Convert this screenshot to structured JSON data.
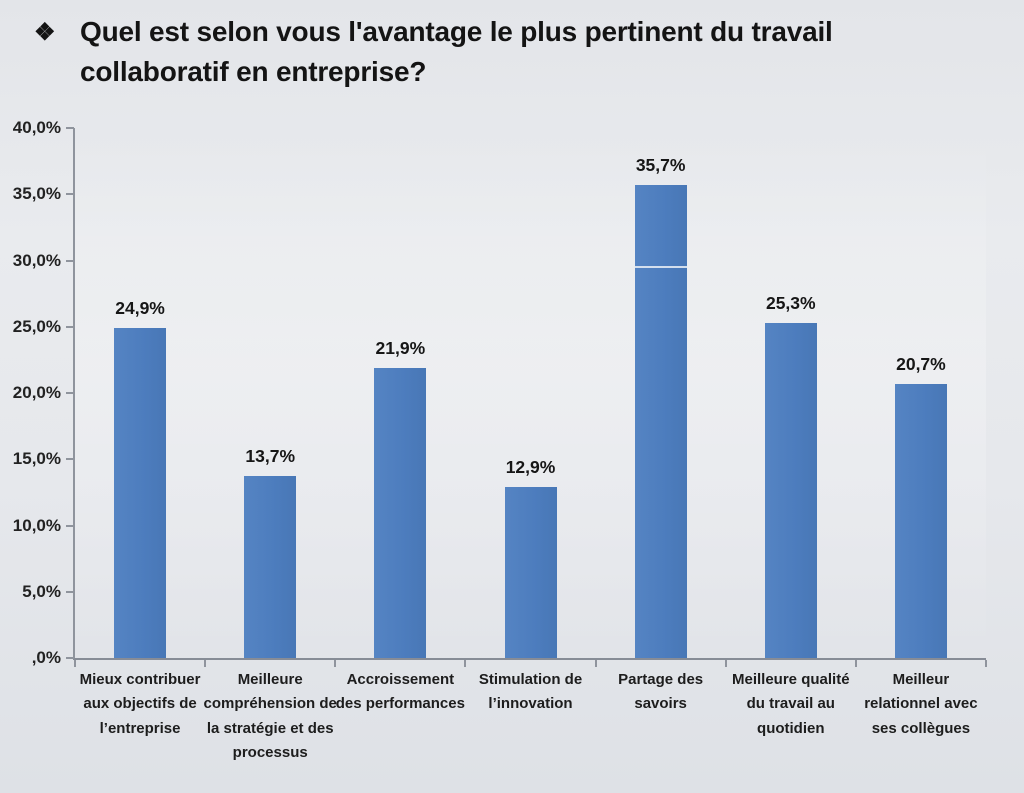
{
  "title": {
    "bullet": "❖",
    "text": "Quel est selon vous l'avantage le plus pertinent du travail collaboratif en entreprise?"
  },
  "chart_data": {
    "type": "bar",
    "title": "",
    "xlabel": "",
    "ylabel": "",
    "categories": [
      "Mieux contribuer aux objectifs de l’entreprise",
      "Meilleure compréhension de la stratégie et des processus",
      "Accroissement des performances",
      "Stimulation de l’innovation",
      "Partage des savoirs",
      "Meilleure qualité du travail au quotidien",
      "Meilleur relationnel avec ses collègues"
    ],
    "values": [
      24.9,
      13.7,
      21.9,
      12.9,
      35.7,
      25.3,
      20.7
    ],
    "value_labels": [
      "24,9%",
      "13,7%",
      "21,9%",
      "12,9%",
      "35,7%",
      "25,3%",
      "20,7%"
    ],
    "y_ticks": [
      "40,0%",
      "35,0%",
      "30,0%",
      "25,0%",
      "20,0%",
      "15,0%",
      "10,0%",
      "5,0%",
      ",0%"
    ],
    "y_tick_values": [
      40,
      35,
      30,
      25,
      20,
      15,
      10,
      5,
      0
    ],
    "ylim": [
      0,
      40
    ],
    "grid": false,
    "legend": null,
    "bar_color": "#4d7dbe",
    "axis_color": "#8f949d",
    "background_color": "#e6e8ec",
    "seam_artifact": {
      "bar_index": 4,
      "value": 29.4
    }
  }
}
